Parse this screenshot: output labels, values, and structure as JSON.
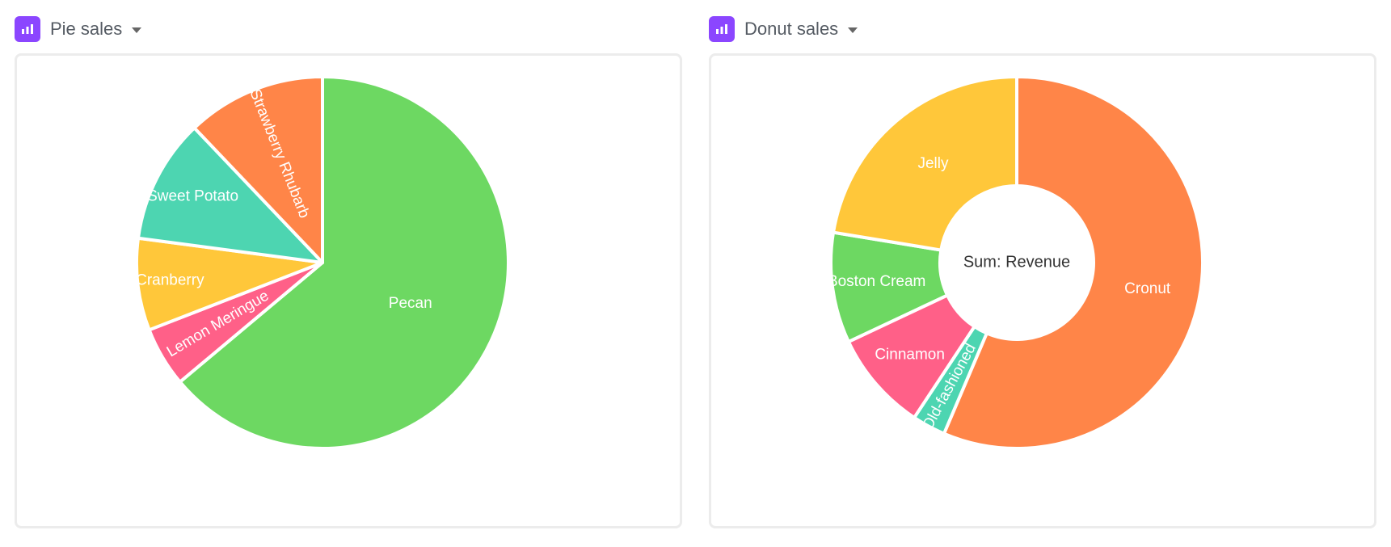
{
  "colors": {
    "icon_bg": "#8b46ff",
    "green": "#6dd862",
    "orange": "#ff8548",
    "teal": "#4dd5b1",
    "yellow": "#ffc73a",
    "pink": "#ff6088"
  },
  "icons": {
    "chart": "bar-chart-icon",
    "caret": "chevron-down-icon"
  },
  "chart_data": [
    {
      "type": "pie",
      "title": "Pie sales",
      "center_label": "",
      "slices": [
        {
          "label": "Pecan",
          "value": 63.9,
          "color": "#6dd862"
        },
        {
          "label": "Lemon Meringue",
          "value": 5.2,
          "color": "#ff6088"
        },
        {
          "label": "Cranberry",
          "value": 8.0,
          "color": "#ffc73a"
        },
        {
          "label": "Sweet Potato",
          "value": 10.8,
          "color": "#4dd5b1"
        },
        {
          "label": "Strawberry Rhubarb",
          "value": 12.1,
          "color": "#ff8548"
        }
      ]
    },
    {
      "type": "pie",
      "title": "Donut sales",
      "center_label": "Sum: Revenue",
      "slices": [
        {
          "label": "Cronut",
          "value": 56.4,
          "color": "#ff8548"
        },
        {
          "label": "Old-fashioned",
          "value": 2.9,
          "color": "#4dd5b1"
        },
        {
          "label": "Cinnamon",
          "value": 8.7,
          "color": "#ff6088"
        },
        {
          "label": "Boston Cream",
          "value": 9.6,
          "color": "#6dd862"
        },
        {
          "label": "Jelly",
          "value": 22.4,
          "color": "#ffc73a"
        }
      ]
    }
  ]
}
